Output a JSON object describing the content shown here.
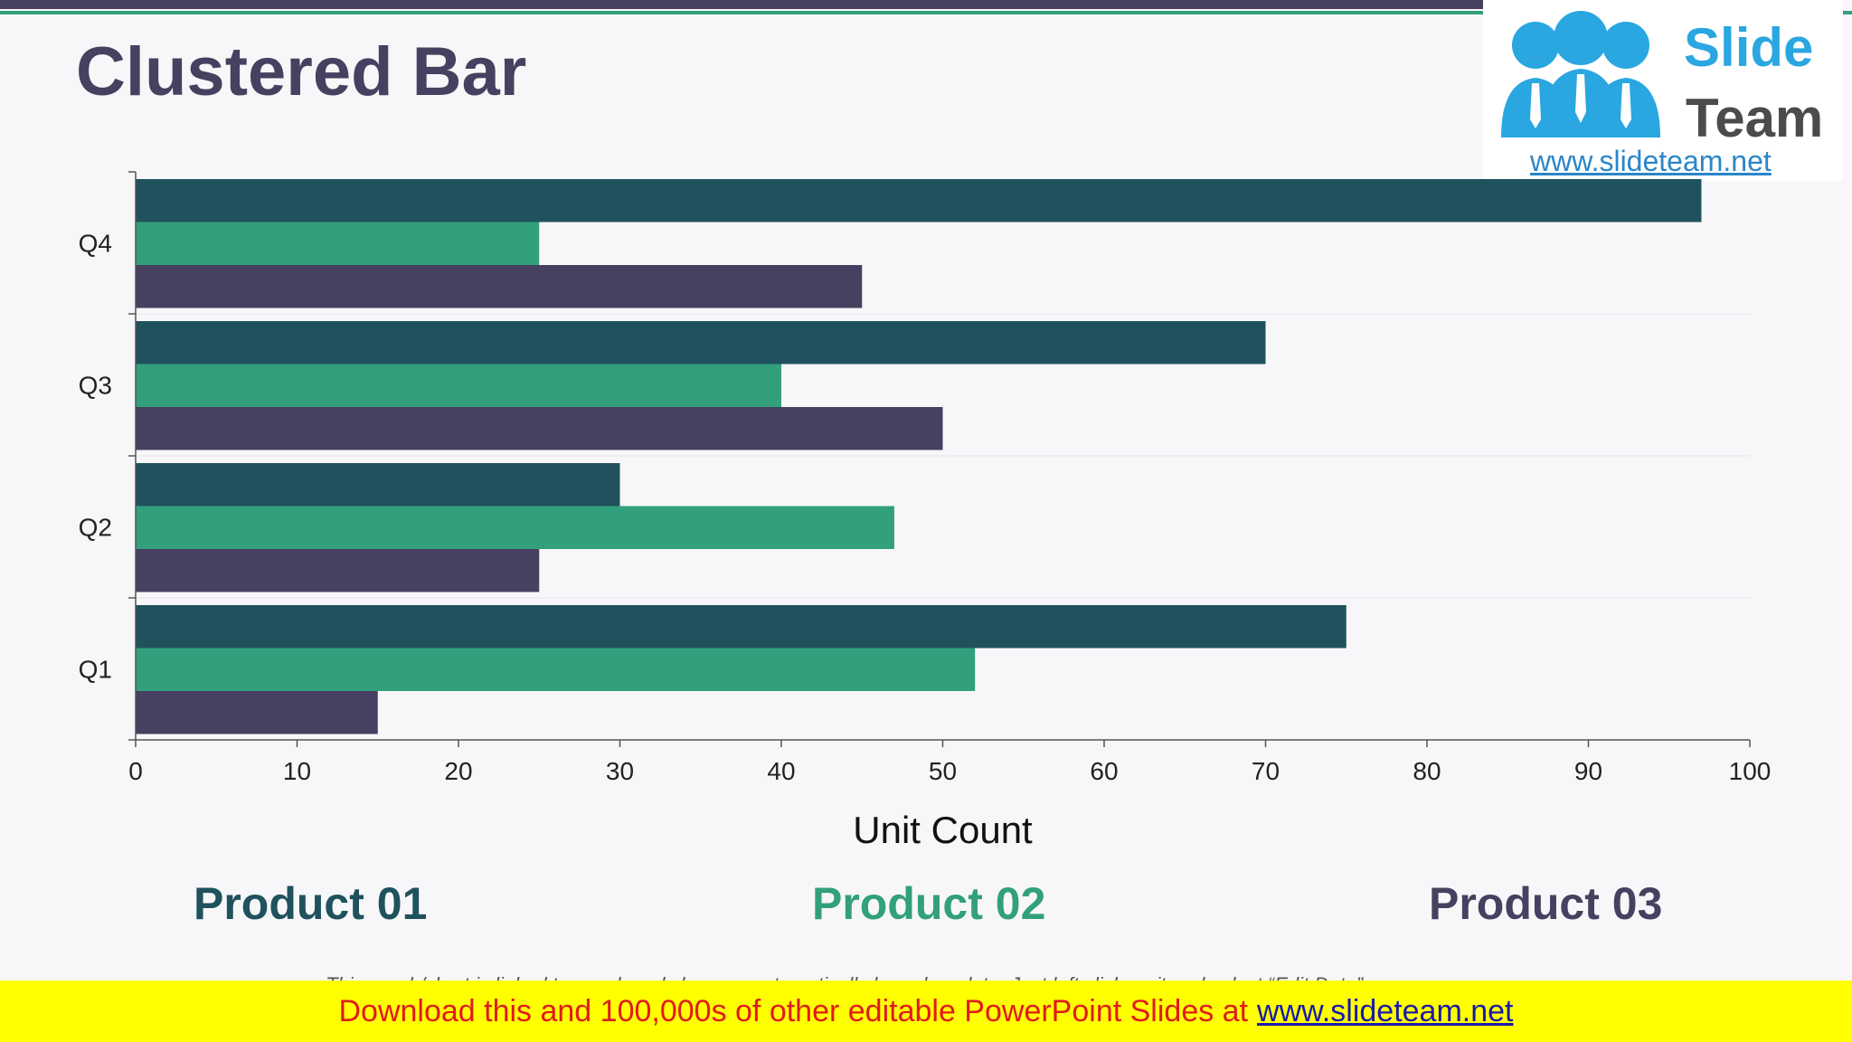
{
  "slide": {
    "title": "Clustered Bar"
  },
  "logo": {
    "word1": "Slide",
    "word2": "Team",
    "url": "www.slideteam.net"
  },
  "chart_data": {
    "type": "bar",
    "orientation": "horizontal",
    "title": "",
    "xlabel": "Unit Count",
    "ylabel": "",
    "categories": [
      "Q1",
      "Q2",
      "Q3",
      "Q4"
    ],
    "xlim": [
      0,
      100
    ],
    "x_ticks": [
      0,
      10,
      20,
      30,
      40,
      50,
      60,
      70,
      80,
      90,
      100
    ],
    "grid": false,
    "legend_position": "bottom",
    "series": [
      {
        "name": "Product 01",
        "color": "#1f525c",
        "values": [
          75,
          30,
          70,
          97
        ]
      },
      {
        "name": "Product 02",
        "color": "#33a07d",
        "values": [
          52,
          47,
          40,
          25
        ]
      },
      {
        "name": "Product 03",
        "color": "#474060",
        "values": [
          15,
          25,
          50,
          45
        ]
      }
    ]
  },
  "footnote": "This graph/chart is linked to excel, and changes automatically based on data. Just left click on it and select “Edit Data”.",
  "banner": {
    "text": "Download this and 100,000s of other editable PowerPoint Slides at",
    "link": "www.slideteam.net"
  }
}
